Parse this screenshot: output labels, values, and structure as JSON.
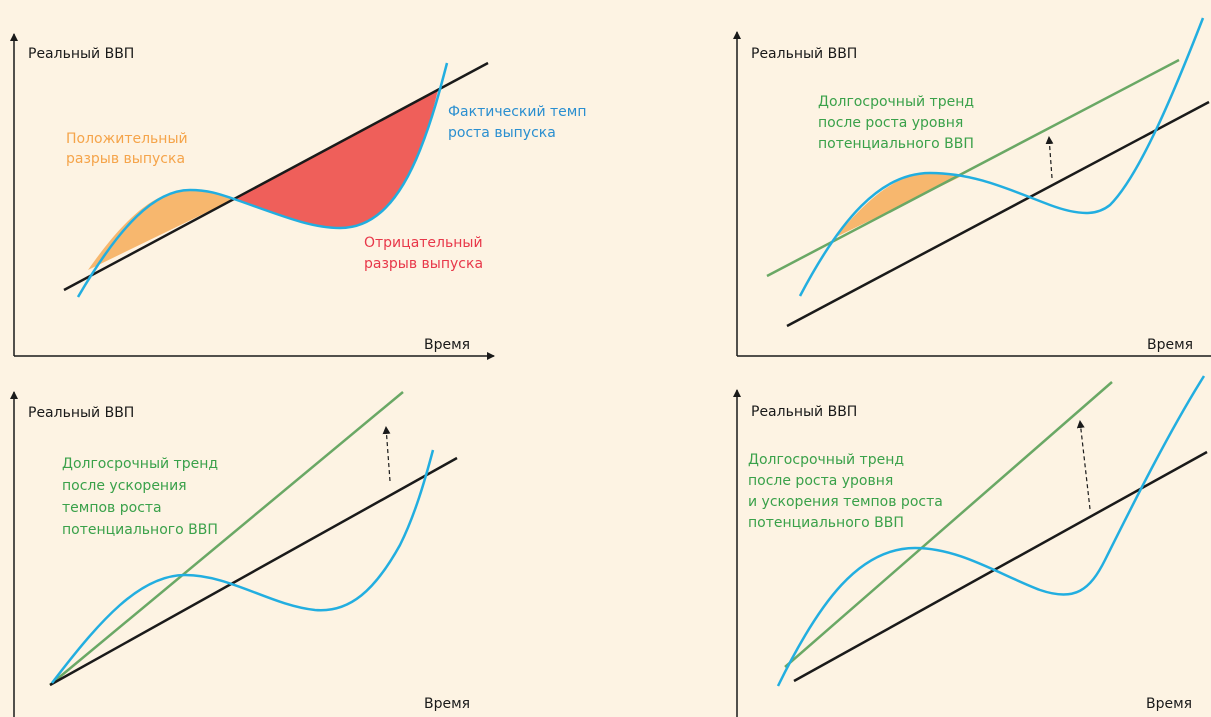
{
  "colors": {
    "background": "#fdf3e3",
    "axis": "#1a1a1a",
    "trend": "#1a1a1a",
    "actual": "#22aee0",
    "new_trend": "#6aa865",
    "positive_gap": "#f7b76e",
    "negative_gap": "#ef5f5a",
    "label_orange": "#f5a44a",
    "label_red": "#e8384a",
    "label_blue": "#2a8fd0",
    "label_green": "#3aa14a"
  },
  "panels": [
    {
      "y_label": "Реальный ВВП",
      "x_label": "Время",
      "positive_gap_label": [
        "Положительный",
        "разрыв выпуска"
      ],
      "negative_gap_label": [
        "Отрицательный",
        "разрыв выпуска"
      ],
      "actual_label": [
        "Фактический темп",
        "роста выпуска"
      ]
    },
    {
      "y_label": "Реальный ВВП",
      "x_label": "Время",
      "trend_label": [
        "Долгосрочный тренд",
        "после роста уровня",
        "потенциального ВВП"
      ]
    },
    {
      "y_label": "Реальный ВВП",
      "x_label": "Время",
      "trend_label": [
        "Долгосрочный тренд",
        "после ускорения",
        "темпов роста",
        "потенциального ВВП"
      ]
    },
    {
      "y_label": "Реальный ВВП",
      "x_label": "Время",
      "trend_label": [
        "Долгосрочный тренд",
        "после роста уровня",
        "и ускорения темпов роста",
        "потенциального ВВП"
      ]
    }
  ]
}
